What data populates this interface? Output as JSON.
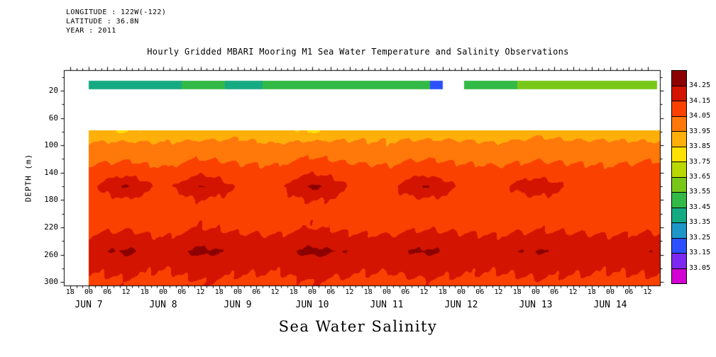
{
  "header": {
    "longitude": "LONGITUDE : 122W(-122)",
    "latitude": "LATITUDE : 36.8N",
    "year": "YEAR : 2011"
  },
  "title": "Hourly Gridded MBARI Mooring M1 Sea Water Temperature and Salinity Observations",
  "bottom_title": "Sea Water Salinity",
  "ylabel": "DEPTH (m)",
  "chart_data": {
    "type": "heatmap",
    "title": "Hourly Gridded MBARI Mooring M1 Sea Water Temperature and Salinity Observations",
    "subtitle": "Sea Water Salinity",
    "x_axis": {
      "tick_labels": [
        "18",
        "00",
        "06",
        "12",
        "18",
        "00",
        "06",
        "12",
        "18",
        "00",
        "06",
        "12",
        "18",
        "00",
        "06",
        "12",
        "18",
        "00",
        "06",
        "12",
        "18",
        "00",
        "06",
        "12",
        "18",
        "00",
        "06",
        "12",
        "18",
        "00",
        "06",
        "12"
      ],
      "tick_step_hours": 6,
      "first_tick_hour_offset": -6,
      "date_labels": [
        "JUN 7",
        "JUN 8",
        "JUN 9",
        "JUN 10",
        "JUN 11",
        "JUN 12",
        "JUN 13",
        "JUN 14"
      ],
      "range_hours": [
        -8,
        184
      ]
    },
    "y_axis": {
      "label": "DEPTH (m)",
      "ticks": [
        20,
        60,
        100,
        140,
        180,
        220,
        260,
        300
      ],
      "range": [
        -10,
        305
      ]
    },
    "colorbar": {
      "levels": [
        33.05,
        33.15,
        33.25,
        33.35,
        33.45,
        33.55,
        33.65,
        33.75,
        33.85,
        33.95,
        34.05,
        34.15,
        34.25
      ],
      "labels_top_to_bottom": [
        "34.25",
        "34.15",
        "34.05",
        "33.95",
        "33.85",
        "33.75",
        "33.65",
        "33.55",
        "33.45",
        "33.35",
        "33.25",
        "33.15",
        "33.05"
      ],
      "colors_low_to_high": [
        "#d200d2",
        "#7d28f0",
        "#2d50ff",
        "#1e96c8",
        "#14aa82",
        "#32b946",
        "#78c819",
        "#b9d700",
        "#ffe100",
        "#ffaf0a",
        "#ff780a",
        "#fa4100",
        "#d21400",
        "#8c0000"
      ]
    },
    "surface_band": {
      "depth_range_m": [
        6,
        18
      ],
      "segments": [
        {
          "t0": 0,
          "t1": 30,
          "salinity": 33.4
        },
        {
          "t0": 30,
          "t1": 44,
          "salinity": 33.46
        },
        {
          "t0": 44,
          "t1": 56,
          "salinity": 33.41
        },
        {
          "t0": 56,
          "t1": 80,
          "salinity": 33.48
        },
        {
          "t0": 80,
          "t1": 92,
          "salinity": 33.52
        },
        {
          "t0": 92,
          "t1": 104,
          "salinity": 33.48
        },
        {
          "t0": 104,
          "t1": 110,
          "salinity": 33.5
        },
        {
          "t0": 110,
          "t1": 114,
          "salinity": 33.2
        },
        {
          "t0": 114,
          "t1": 121,
          "salinity": null
        },
        {
          "t0": 121,
          "t1": 138,
          "salinity": 33.52
        },
        {
          "t0": 138,
          "t1": 156,
          "salinity": 33.57
        },
        {
          "t0": 156,
          "t1": 172,
          "salinity": 33.6
        },
        {
          "t0": 172,
          "t1": 183,
          "salinity": 33.58
        }
      ]
    },
    "grid": {
      "times_hours": [
        0,
        12,
        24,
        36,
        48,
        60,
        72,
        84,
        96,
        108,
        120,
        132,
        144,
        156,
        168,
        180
      ],
      "depths_m": [
        80,
        100,
        120,
        140,
        160,
        180,
        200,
        220,
        240,
        255,
        270,
        300
      ],
      "salinity": [
        [
          33.88,
          33.84,
          33.9,
          33.86,
          33.92,
          33.88,
          33.84,
          33.9,
          33.92,
          33.88,
          33.9,
          33.86,
          33.92,
          33.9,
          33.88,
          33.9
        ],
        [
          33.97,
          33.99,
          33.96,
          34.0,
          33.98,
          33.96,
          34.0,
          33.98,
          33.96,
          34.0,
          33.98,
          33.97,
          34.0,
          33.98,
          33.99,
          33.97
        ],
        [
          34.02,
          34.04,
          34.01,
          34.05,
          34.03,
          34.02,
          34.06,
          34.03,
          34.02,
          34.05,
          34.03,
          34.02,
          34.04,
          34.03,
          34.02,
          34.04
        ],
        [
          34.08,
          34.12,
          34.07,
          34.13,
          34.09,
          34.08,
          34.14,
          34.1,
          34.08,
          34.12,
          34.09,
          34.08,
          34.11,
          34.09,
          34.08,
          34.1
        ],
        [
          34.12,
          34.26,
          34.11,
          34.27,
          34.13,
          34.12,
          34.28,
          34.14,
          34.12,
          34.26,
          34.13,
          34.12,
          34.22,
          34.13,
          34.12,
          34.14
        ],
        [
          34.1,
          34.14,
          34.09,
          34.15,
          34.11,
          34.1,
          34.16,
          34.12,
          34.1,
          34.14,
          34.11,
          34.1,
          34.13,
          34.11,
          34.1,
          34.12
        ],
        [
          34.09,
          34.11,
          34.08,
          34.12,
          34.1,
          34.09,
          34.12,
          34.1,
          34.09,
          34.11,
          34.1,
          34.09,
          34.11,
          34.1,
          34.09,
          34.1
        ],
        [
          34.12,
          34.14,
          34.11,
          34.15,
          34.13,
          34.12,
          34.15,
          34.13,
          34.12,
          34.14,
          34.13,
          34.12,
          34.14,
          34.13,
          34.12,
          34.13
        ],
        [
          34.17,
          34.2,
          34.16,
          34.21,
          34.18,
          34.17,
          34.21,
          34.18,
          34.17,
          34.2,
          34.18,
          34.17,
          34.19,
          34.18,
          34.17,
          34.18
        ],
        [
          34.22,
          34.27,
          34.21,
          34.28,
          34.23,
          34.22,
          34.28,
          34.24,
          34.22,
          34.27,
          34.23,
          34.22,
          34.26,
          34.23,
          34.22,
          34.24
        ],
        [
          34.18,
          34.21,
          34.17,
          34.22,
          34.19,
          34.18,
          34.22,
          34.19,
          34.18,
          34.21,
          34.19,
          34.18,
          34.2,
          34.19,
          34.18,
          34.19
        ],
        [
          34.12,
          34.14,
          34.11,
          34.15,
          34.13,
          34.12,
          34.15,
          34.13,
          34.12,
          34.14,
          34.13,
          34.12,
          34.14,
          34.13,
          34.12,
          34.13
        ]
      ]
    }
  }
}
